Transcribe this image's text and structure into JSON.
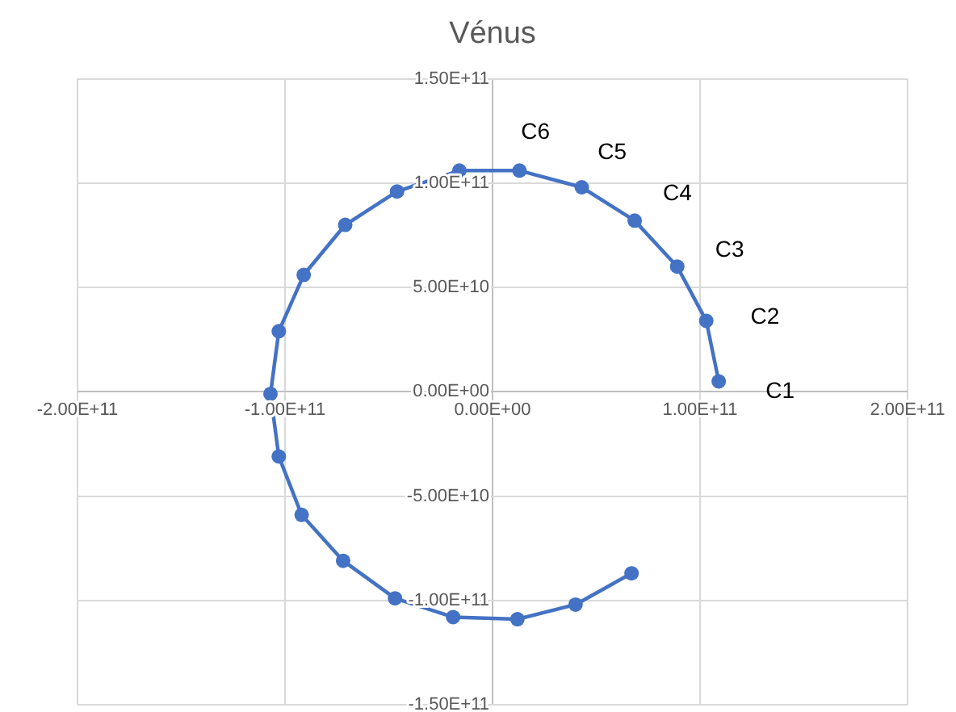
{
  "chart_data": {
    "type": "line",
    "title": "Vénus",
    "x": [
      109000000000,
      103000000000,
      89000000000,
      68500000000,
      43000000000,
      13000000000,
      -16000000000,
      -46000000000,
      -71000000000,
      -91000000000,
      -103000000000,
      -107000000000,
      -103000000000,
      -92000000000,
      -72000000000,
      -47000000000,
      -19000000000,
      12000000000,
      40000000000,
      67000000000
    ],
    "series": [
      {
        "color": "#4472c4",
        "values": [
          5000000000,
          34000000000,
          60000000000,
          82000000000,
          98000000000,
          106000000000,
          106000000000,
          96000000000,
          80000000000,
          56000000000,
          29000000000,
          -1000000000,
          -31000000000,
          -59000000000,
          -81000000000,
          -99000000000,
          -108000000000,
          -109000000000,
          -102000000000,
          -87000000000
        ]
      }
    ],
    "xlim": [
      -200000000000,
      200000000000
    ],
    "xticks": [
      {
        "value": -200000000000,
        "label": "-2.00E+11"
      },
      {
        "value": -100000000000,
        "label": "-1.00E+11"
      },
      {
        "value": 0,
        "label": "0.00E+00"
      },
      {
        "value": 100000000000,
        "label": "1.00E+11"
      },
      {
        "value": 200000000000,
        "label": "2.00E+11"
      }
    ],
    "ylim": [
      -150000000000,
      150000000000
    ],
    "yticks": [
      {
        "value": -150000000000,
        "label": "-1.50E+11"
      },
      {
        "value": -100000000000,
        "label": "-1.00E+11"
      },
      {
        "value": -50000000000,
        "label": "-5.00E+10"
      },
      {
        "value": 0,
        "label": "0.00E+00"
      },
      {
        "value": 50000000000,
        "label": "5.00E+10"
      },
      {
        "value": 100000000000,
        "label": "1.00E+11"
      },
      {
        "value": 150000000000,
        "label": "1.50E+11"
      }
    ],
    "annotations": [
      {
        "text": "C1",
        "x": 109000000000,
        "y": 5000000000
      },
      {
        "text": "C2",
        "x": 103000000000,
        "y": 34000000000
      },
      {
        "text": "C3",
        "x": 89000000000,
        "y": 60000000000
      },
      {
        "text": "C4",
        "x": 68500000000,
        "y": 82000000000
      },
      {
        "text": "C5",
        "x": 43000000000,
        "y": 98000000000
      },
      {
        "text": "C6",
        "x": 13000000000,
        "y": 106000000000
      }
    ],
    "grid": true,
    "legend": false,
    "marker": "circle",
    "line_style": "solid"
  }
}
